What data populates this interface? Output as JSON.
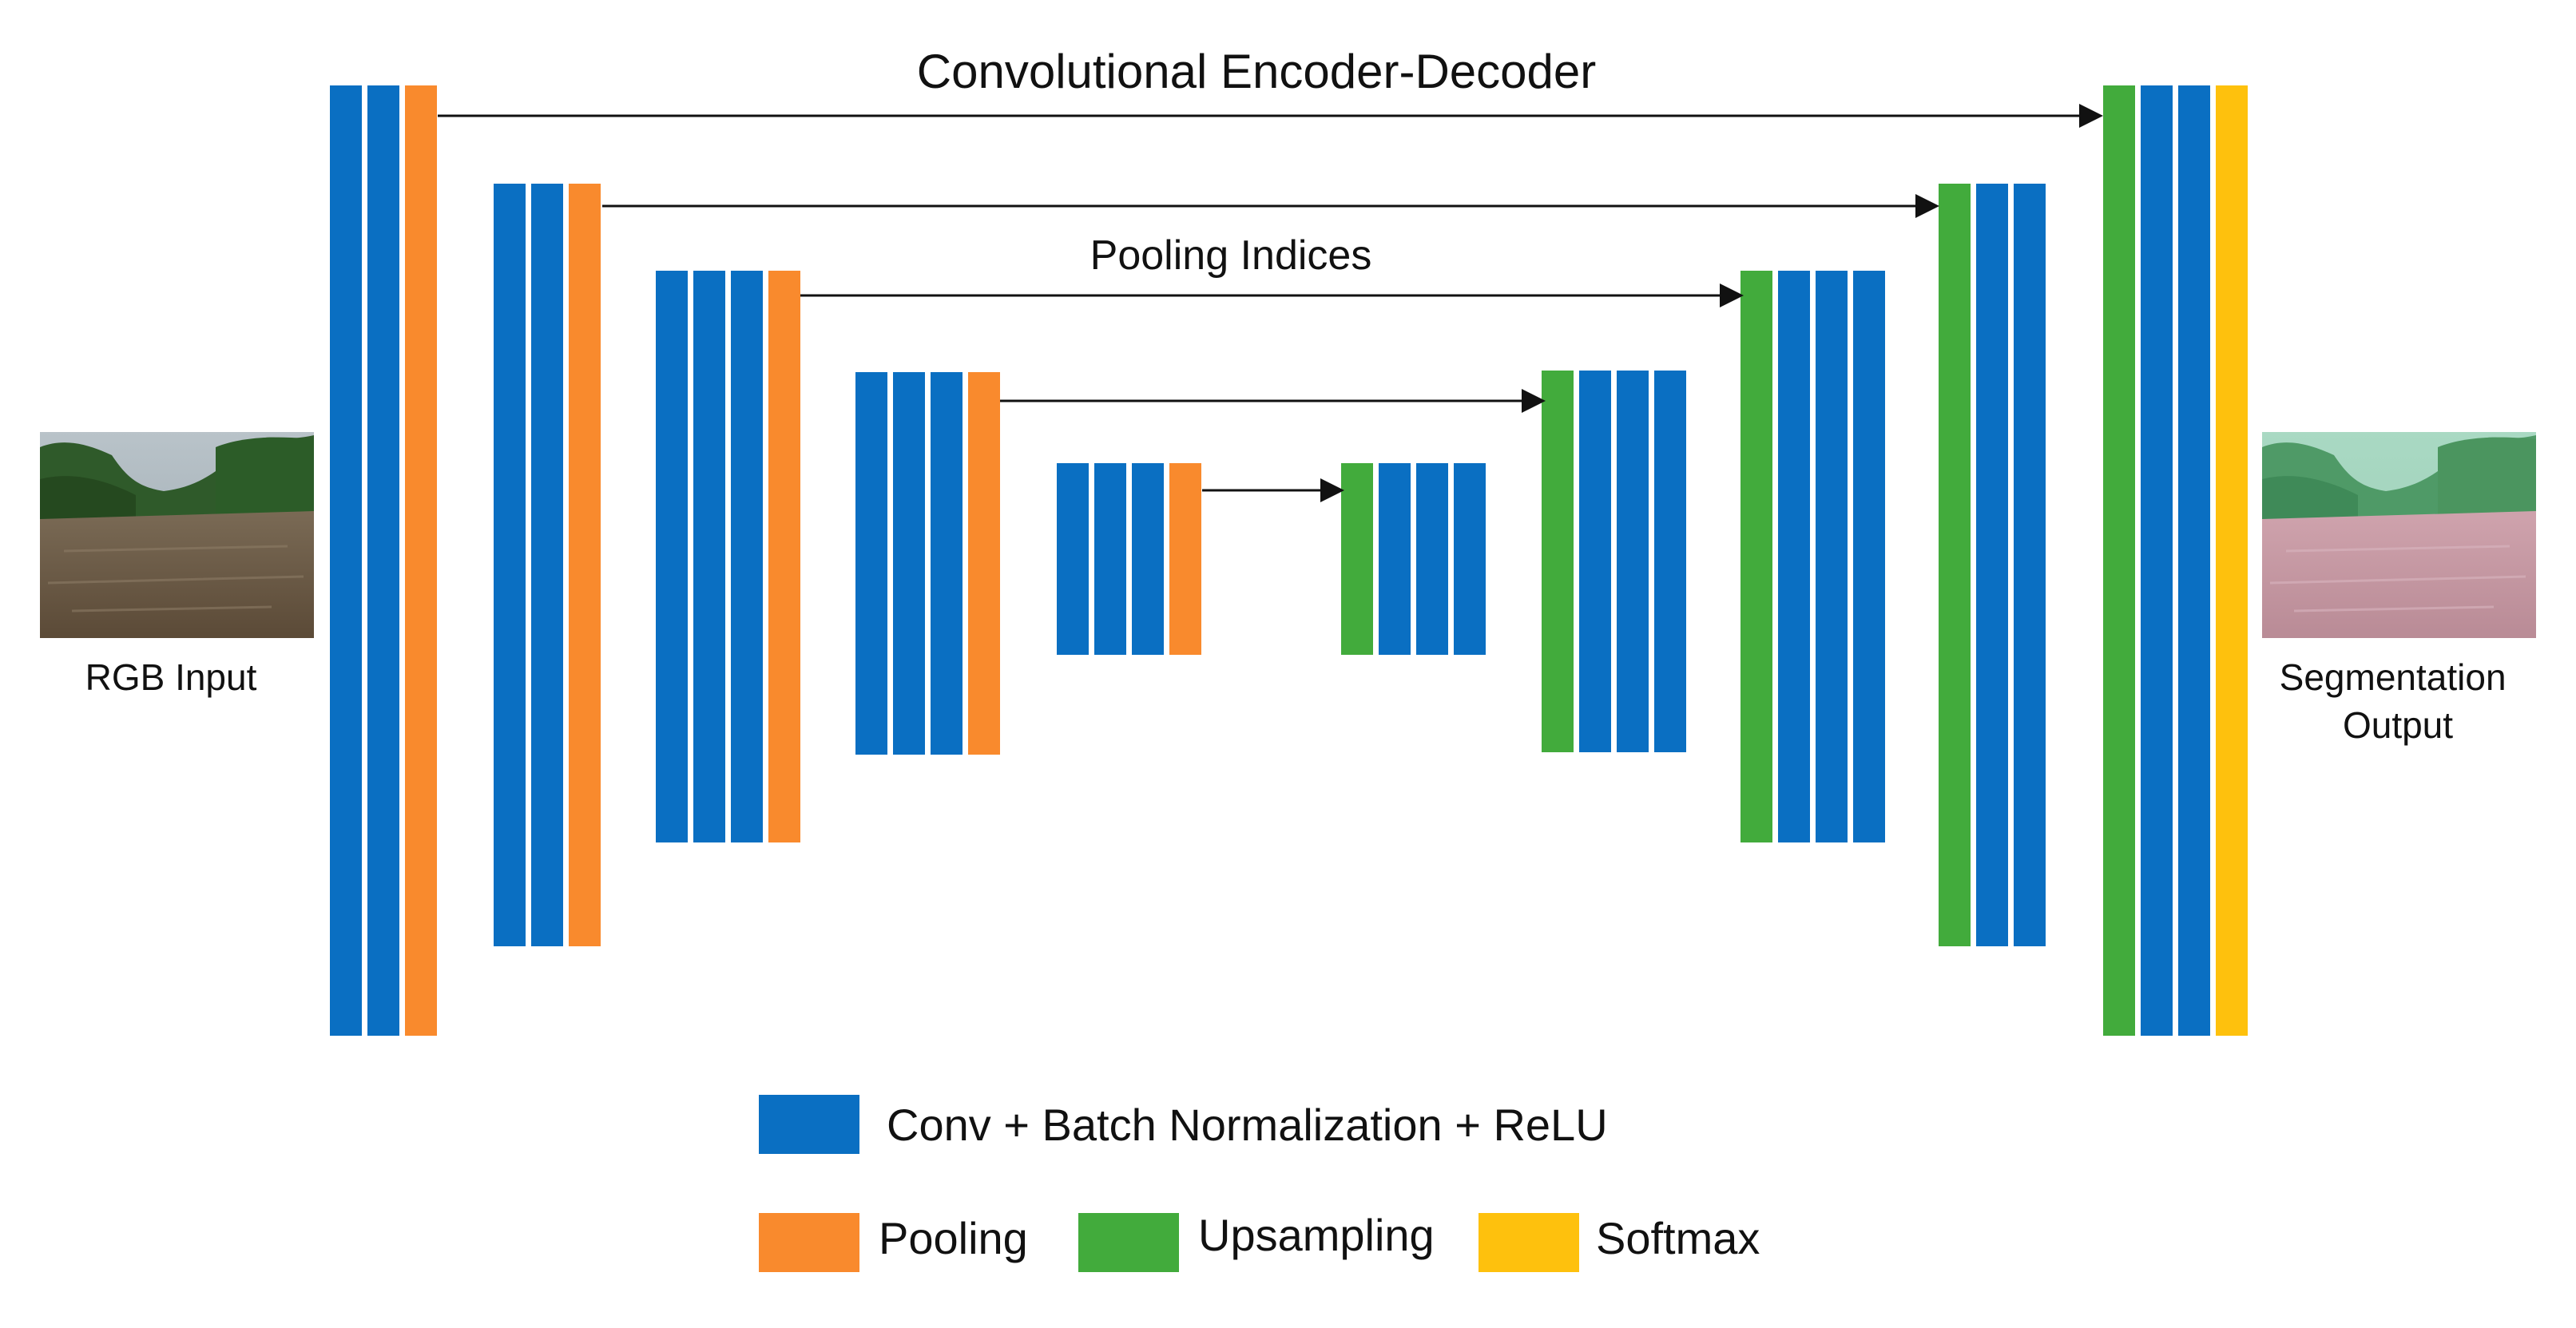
{
  "diagram": {
    "title": "Convolutional Encoder-Decoder",
    "skip_label": "Pooling Indices",
    "input_label": "RGB Input",
    "output_label_lines": [
      "Segmentation",
      "Output"
    ],
    "input_image_description": "river",
    "output_image_description": "river segmentation"
  },
  "legend": {
    "conv": "Conv + Batch Normalization + ReLU",
    "pooling": "Pooling",
    "upsampling": "Upsampling",
    "softmax": "Softmax"
  },
  "colors": {
    "conv": "#0a6fc2",
    "pooling": "#f98a2d",
    "upsampling": "#42ab3c",
    "softmax": "#fec10d",
    "arrow": "#111111"
  },
  "encoder": [
    {
      "stage": 1,
      "layers": [
        "conv",
        "conv",
        "pooling"
      ]
    },
    {
      "stage": 2,
      "layers": [
        "conv",
        "conv",
        "pooling"
      ]
    },
    {
      "stage": 3,
      "layers": [
        "conv",
        "conv",
        "conv",
        "pooling"
      ]
    },
    {
      "stage": 4,
      "layers": [
        "conv",
        "conv",
        "conv",
        "pooling"
      ]
    },
    {
      "stage": 5,
      "layers": [
        "conv",
        "conv",
        "conv",
        "pooling"
      ]
    }
  ],
  "decoder": [
    {
      "stage": 5,
      "layers": [
        "upsampling",
        "conv",
        "conv",
        "conv"
      ]
    },
    {
      "stage": 4,
      "layers": [
        "upsampling",
        "conv",
        "conv",
        "conv"
      ]
    },
    {
      "stage": 3,
      "layers": [
        "upsampling",
        "conv",
        "conv",
        "conv"
      ]
    },
    {
      "stage": 2,
      "layers": [
        "upsampling",
        "conv",
        "conv"
      ]
    },
    {
      "stage": 1,
      "layers": [
        "upsampling",
        "conv",
        "conv",
        "softmax"
      ]
    }
  ]
}
